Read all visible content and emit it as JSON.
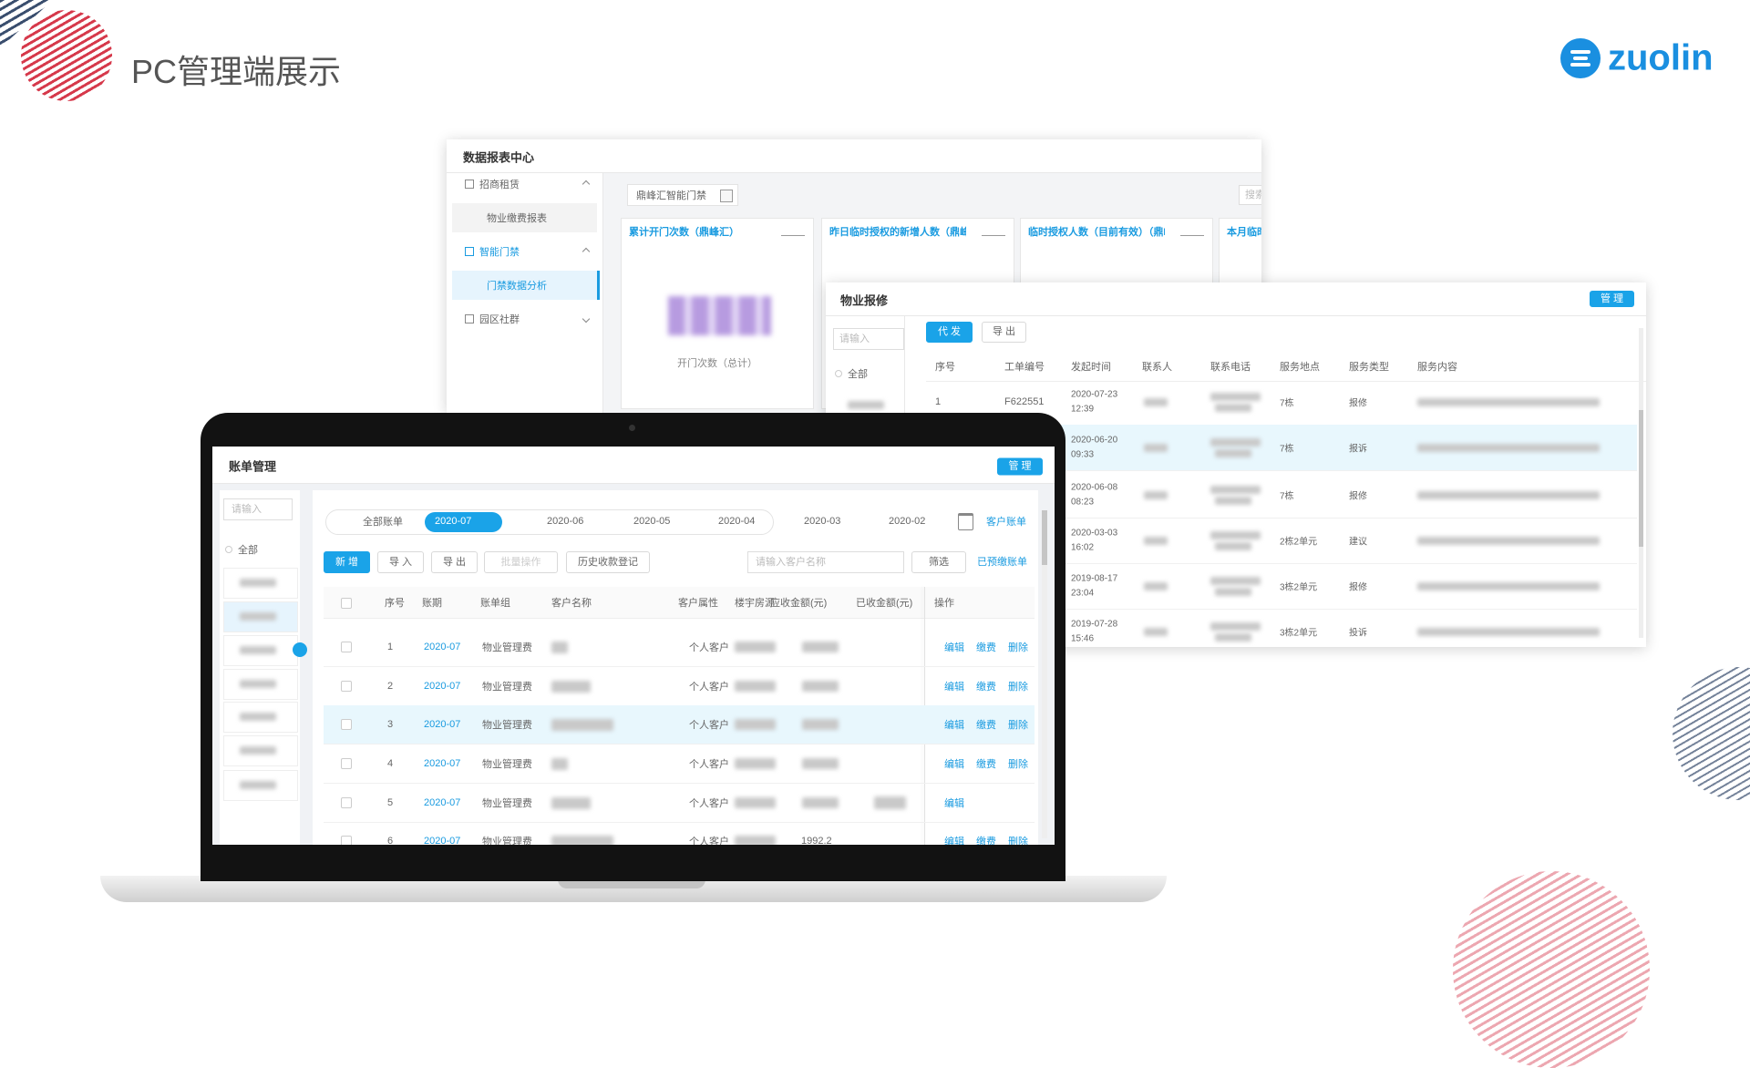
{
  "header": {
    "title": "PC管理端展示",
    "logo": "zuolin"
  },
  "report": {
    "title": "数据报表中心",
    "menu": [
      {
        "group": "招商租赁",
        "items": [
          "物业缴费报表"
        ]
      },
      {
        "group": "智能门禁",
        "items": [
          "门禁数据分析"
        ]
      },
      {
        "group": "园区社群"
      }
    ],
    "tab": "鼎峰汇智能门禁",
    "search": "搜索",
    "cards": [
      "累计开门次数（鼎峰汇）",
      "昨日临时授权的新增人数（鼎峰汇",
      "临时授权人数（目前有效）（鼎峰",
      "本月临时"
    ],
    "card_caption": "开门次数（总计）"
  },
  "repair": {
    "title": "物业报修",
    "manage": "管 理",
    "buttons": [
      "代 发",
      "导 出"
    ],
    "search": "请输入",
    "filter": "全部",
    "columns": [
      "序号",
      "工单编号",
      "发起时间",
      "联系人",
      "联系电话",
      "服务地点",
      "服务类型",
      "服务内容"
    ],
    "rows": [
      {
        "no": "1",
        "code": "F622551",
        "date": "2020-07-23",
        "time": "12:39",
        "place": "7栋",
        "type": "报修"
      },
      {
        "date": "2020-06-20",
        "time": "09:33",
        "place": "7栋",
        "type": "报诉"
      },
      {
        "date": "2020-06-08",
        "time": "08:23",
        "place": "7栋",
        "type": "报修"
      },
      {
        "date": "2020-03-03",
        "time": "16:02",
        "place": "2栋2单元",
        "type": "建议"
      },
      {
        "date": "2019-08-17",
        "time": "23:04",
        "place": "3栋2单元",
        "type": "报修"
      },
      {
        "date": "2019-07-28",
        "time": "15:46",
        "place": "3栋2单元",
        "type": "投诉"
      }
    ]
  },
  "bill": {
    "title": "账单管理",
    "manage": "管 理",
    "search": "请输入",
    "filter": "全部",
    "tabs": [
      "全部账单",
      "2020-07",
      "2020-06",
      "2020-05",
      "2020-04",
      "2020-03",
      "2020-02"
    ],
    "customer_bill": "客户账单",
    "buttons": [
      "新 增",
      "导 入",
      "导 出",
      "批量操作",
      "历史收款登记"
    ],
    "customer_search": "请输入客户名称",
    "screen": "筛选",
    "prepaid": "已预缴账单",
    "columns": [
      "序号",
      "账期",
      "账单组",
      "客户名称",
      "客户属性",
      "楼宇房源",
      "应收金额(元)",
      "已收金额(元)",
      "操作"
    ],
    "rows": [
      {
        "no": "1",
        "period": "2020-07",
        "group": "物业管理费",
        "attr": "个人客户",
        "actions": [
          "编辑",
          "缴费",
          "删除"
        ]
      },
      {
        "no": "2",
        "period": "2020-07",
        "group": "物业管理费",
        "attr": "个人客户",
        "actions": [
          "编辑",
          "缴费",
          "删除"
        ]
      },
      {
        "no": "3",
        "period": "2020-07",
        "group": "物业管理费",
        "attr": "个人客户",
        "actions": [
          "编辑",
          "缴费",
          "删除"
        ]
      },
      {
        "no": "4",
        "period": "2020-07",
        "group": "物业管理费",
        "attr": "个人客户",
        "actions": [
          "编辑",
          "缴费",
          "删除"
        ]
      },
      {
        "no": "5",
        "period": "2020-07",
        "group": "物业管理费",
        "attr": "个人客户",
        "actions": [
          "编辑"
        ]
      },
      {
        "no": "6",
        "period": "2020-07",
        "group": "物业管理费",
        "attr": "个人客户",
        "receivable": "1992.2",
        "actions": [
          "编辑",
          "缴费",
          "删除"
        ]
      }
    ]
  }
}
